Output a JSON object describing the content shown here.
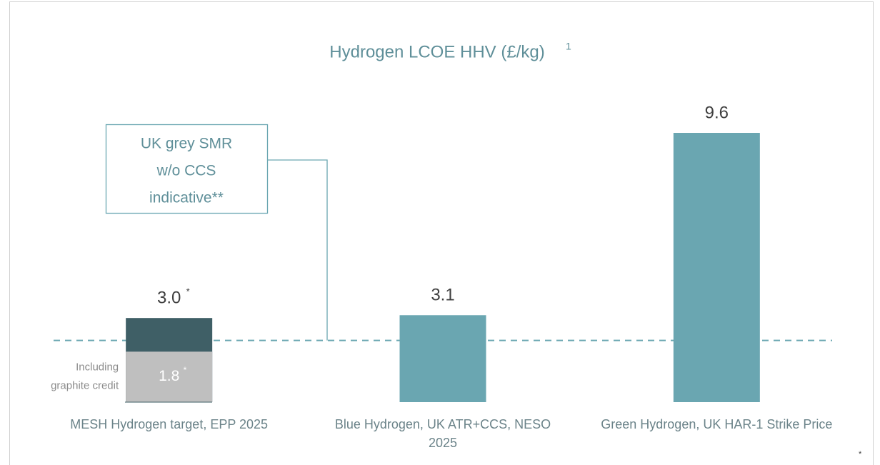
{
  "chart_data": {
    "type": "bar",
    "title": "Hydrogen LCOE HHV (£/kg)",
    "title_superscript": "1",
    "categories": [
      "MESH Hydrogen target, EPP 2025",
      "Blue Hydrogen, UK ATR+CCS, NESO\n2025",
      "Green Hydrogen, UK HAR-1 Strike Price"
    ],
    "values": [
      3.0,
      3.1,
      9.6
    ],
    "value_labels": [
      "3.0",
      "3.1",
      "9.6"
    ],
    "value_label_notes": [
      "*",
      null,
      null
    ],
    "colors": [
      "#3f5f66",
      "#6aa6b1",
      "#6aa6b1"
    ],
    "inner_segment": {
      "values": [
        1.8,
        null,
        null
      ],
      "value_labels": [
        "1.8",
        null,
        null
      ],
      "value_label_notes": [
        "*",
        null,
        null
      ],
      "color": "#bfbfbf",
      "annotation": [
        "Including",
        "graphite credit"
      ]
    },
    "reference_line": {
      "value": 2.2,
      "label": [
        "UK grey SMR",
        "w/o CCS",
        "indicative**"
      ],
      "color": "#6aa6b1",
      "style": "dashed"
    },
    "ylim": [
      0,
      10.5
    ],
    "footnote": "*"
  }
}
